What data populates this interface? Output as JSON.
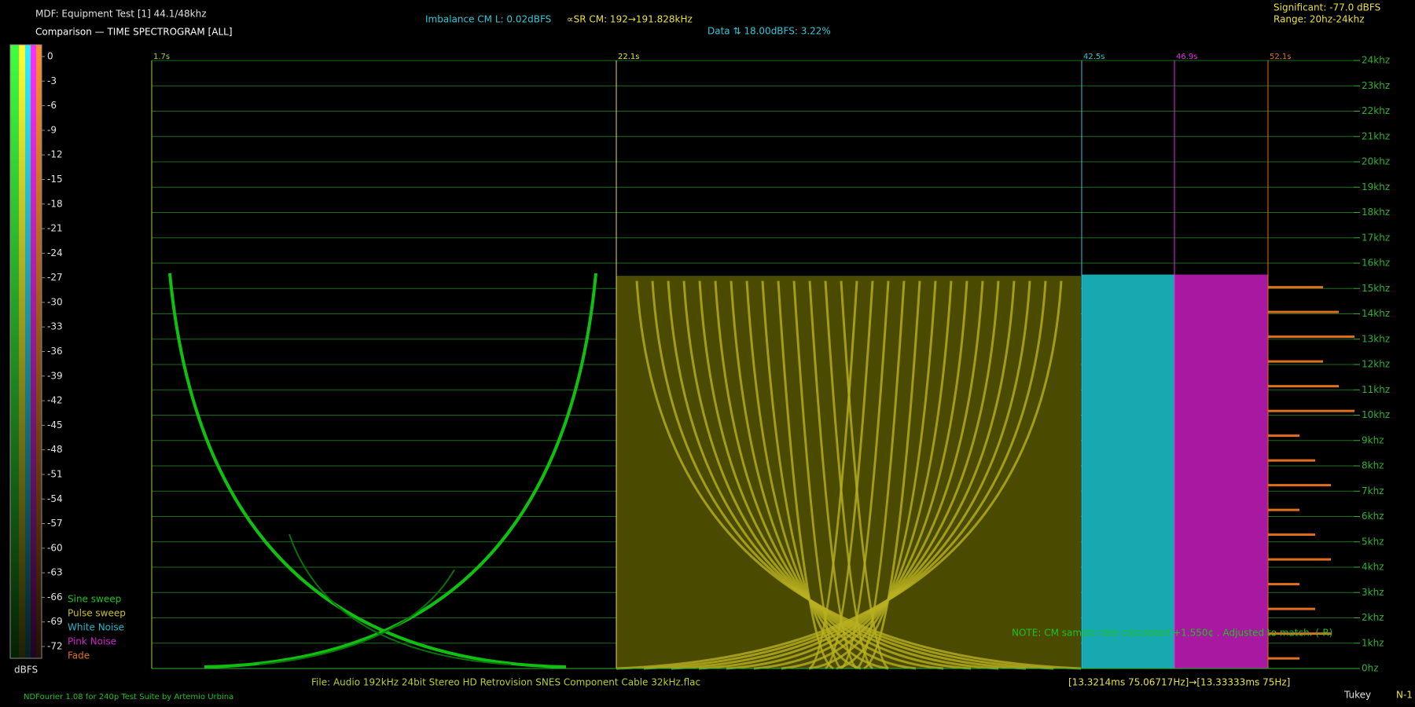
{
  "header": {
    "title": "MDF: Equipment Test [1] 44.1/48khz",
    "subtitle": "Comparison — TIME SPECTROGRAM [ALL]",
    "imbalance": "Imbalance CM L: 0.02dBFS",
    "sr": "∝SR CM: 192→191.828kHz",
    "data": "Data ⇅ 18.00dBFS: 3.22%",
    "significant": "Significant: -77.0 dBFS",
    "range": "Range: 20hz-24khz"
  },
  "colorbar": {
    "ticks": [
      0,
      -3,
      -6,
      -9,
      -12,
      -15,
      -18,
      -21,
      -24,
      -27,
      -30,
      -33,
      -36,
      -39,
      -42,
      -45,
      -48,
      -51,
      -54,
      -57,
      -60,
      -63,
      -66,
      -69,
      -72
    ],
    "unit": "dBFS"
  },
  "legend": [
    {
      "name": "Sine sweep",
      "color": "#20c020"
    },
    {
      "name": "Pulse sweep",
      "color": "#c8c020"
    },
    {
      "name": "White Noise",
      "color": "#20b8c8"
    },
    {
      "name": "Pink Noise",
      "color": "#d020d0"
    },
    {
      "name": "Fade",
      "color": "#e07020"
    }
  ],
  "time_markers": [
    {
      "label": "1.7s",
      "color": "#a8d020"
    },
    {
      "label": "22.1s",
      "color": "#e8e040"
    },
    {
      "label": "42.5s",
      "color": "#30c8d8"
    },
    {
      "label": "46.9s",
      "color": "#e030e0"
    },
    {
      "label": "52.1s",
      "color": "#e07020"
    }
  ],
  "frequency_ticks": [
    {
      "value": 24,
      "label": "24khz"
    },
    {
      "value": 23,
      "label": "23khz"
    },
    {
      "value": 22,
      "label": "22khz"
    },
    {
      "value": 21,
      "label": "21khz"
    },
    {
      "value": 20,
      "label": "20khz"
    },
    {
      "value": 19,
      "label": "19khz"
    },
    {
      "value": 18,
      "label": "18khz"
    },
    {
      "value": 17,
      "label": "17khz"
    },
    {
      "value": 16,
      "label": "16khz"
    },
    {
      "value": 15,
      "label": "15khz"
    },
    {
      "value": 14,
      "label": "14khz"
    },
    {
      "value": 13,
      "label": "13khz"
    },
    {
      "value": 12,
      "label": "12khz"
    },
    {
      "value": 11,
      "label": "11khz"
    },
    {
      "value": 10,
      "label": "10khz"
    },
    {
      "value": 9,
      "label": "9khz"
    },
    {
      "value": 8,
      "label": "8khz"
    },
    {
      "value": 7,
      "label": "7khz"
    },
    {
      "value": 6,
      "label": "6khz"
    },
    {
      "value": 5,
      "label": "5khz"
    },
    {
      "value": 4,
      "label": "4khz"
    },
    {
      "value": 3,
      "label": "3khz"
    },
    {
      "value": 2,
      "label": "2khz"
    },
    {
      "value": 1,
      "label": "1khz"
    },
    {
      "value": 0,
      "label": "0hz"
    }
  ],
  "frequency_range": [
    0,
    24
  ],
  "note": "NOTE: CM sample rate calculated +1.550¢ . Adjusted to match. (-R)",
  "footer": {
    "file": "File: Audio  192kHz 24bit Stereo HD Retrovision SNES Component Cable 32kHz.flac",
    "timing": "[13.3214ms 75.06717Hz]→[13.33333ms 75Hz]",
    "credit": "NDFourier 1.08 for 240p Test Suite by Artemio Urbina",
    "window": "Tukey",
    "extra": "N-1"
  }
}
